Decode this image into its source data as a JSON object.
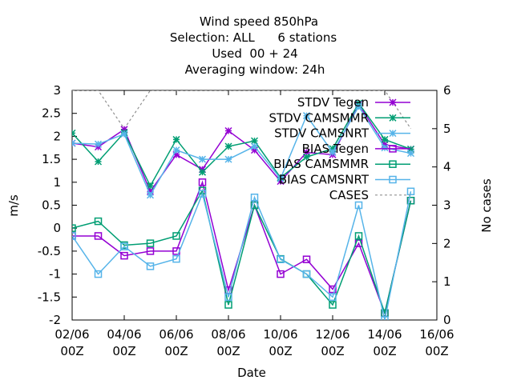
{
  "chart_data": {
    "type": "line",
    "title_lines": [
      "Wind speed 850hPa",
      "Selection: ALL      6 stations",
      "Used  00 + 24",
      "Averaging window: 24h"
    ],
    "xlabel": "Date",
    "ylabel": "m/s",
    "y2label": "No cases",
    "ylim": [
      -2,
      3
    ],
    "y2lim": [
      0,
      6
    ],
    "x_day_range": [
      2,
      16
    ],
    "y_ticks": [
      "-2",
      "-1.5",
      "-1",
      "-0.5",
      "0",
      "0.5",
      "1",
      "1.5",
      "2",
      "2.5",
      "3"
    ],
    "y2_ticks": [
      "0",
      "1",
      "2",
      "3",
      "4",
      "5",
      "6"
    ],
    "x_ticks": [
      {
        "date": "02/06",
        "hour": "00Z"
      },
      {
        "date": "04/06",
        "hour": "00Z"
      },
      {
        "date": "06/06",
        "hour": "00Z"
      },
      {
        "date": "08/06",
        "hour": "00Z"
      },
      {
        "date": "10/06",
        "hour": "00Z"
      },
      {
        "date": "12/06",
        "hour": "00Z"
      },
      {
        "date": "14/06",
        "hour": "00Z"
      },
      {
        "date": "16/06",
        "hour": "00Z"
      }
    ],
    "x_days": [
      2,
      3,
      4,
      5,
      6,
      7,
      8,
      9,
      10,
      11,
      12,
      13,
      14,
      15
    ],
    "legend_position": "top-right",
    "grid": false,
    "series": [
      {
        "name": "STDV Tegen",
        "axis": "y",
        "color": "#9400d3",
        "marker": "star",
        "dash": false,
        "values": [
          1.85,
          1.77,
          2.15,
          0.8,
          1.6,
          1.28,
          2.12,
          1.7,
          1.02,
          1.65,
          1.6,
          2.7,
          1.82,
          1.72
        ]
      },
      {
        "name": "STDV CAMSMMR",
        "axis": "y",
        "color": "#009e73",
        "marker": "star",
        "dash": false,
        "values": [
          2.07,
          1.45,
          2.08,
          0.92,
          1.93,
          1.22,
          1.78,
          1.9,
          1.1,
          1.55,
          1.73,
          2.72,
          1.93,
          1.72
        ]
      },
      {
        "name": "STDV CAMSNRT",
        "axis": "y",
        "color": "#56b4e9",
        "marker": "star",
        "dash": false,
        "values": [
          1.85,
          1.83,
          2.05,
          0.72,
          1.7,
          1.5,
          1.5,
          1.78,
          1.08,
          2.45,
          1.65,
          2.65,
          1.75,
          1.63
        ]
      },
      {
        "name": "BIAS Tegen",
        "axis": "y",
        "color": "#9400d3",
        "marker": "square",
        "dash": false,
        "values": [
          -0.17,
          -0.17,
          -0.6,
          -0.5,
          -0.5,
          1.0,
          -1.35,
          0.5,
          -1.0,
          -0.68,
          -1.33,
          -0.33,
          -1.85,
          0.6
        ]
      },
      {
        "name": "BIAS CAMSMMR",
        "axis": "y",
        "color": "#009e73",
        "marker": "square",
        "dash": false,
        "values": [
          0.0,
          0.15,
          -0.37,
          -0.33,
          -0.17,
          0.82,
          -1.67,
          0.5,
          -0.67,
          -1.0,
          -1.67,
          -0.17,
          -1.85,
          0.6
        ]
      },
      {
        "name": "BIAS CAMSNRT",
        "axis": "y",
        "color": "#56b4e9",
        "marker": "square",
        "dash": false,
        "values": [
          -0.17,
          -1.0,
          -0.4,
          -0.83,
          -0.67,
          0.75,
          -1.5,
          0.67,
          -0.68,
          -1.0,
          -1.5,
          0.5,
          -2.0,
          0.8
        ]
      },
      {
        "name": "CASES",
        "axis": "y2",
        "color": "#909090",
        "marker": "none",
        "dash": true,
        "values": [
          6,
          6,
          5,
          6,
          6,
          6,
          6,
          6,
          6,
          6,
          6,
          6,
          6,
          5
        ]
      }
    ]
  }
}
